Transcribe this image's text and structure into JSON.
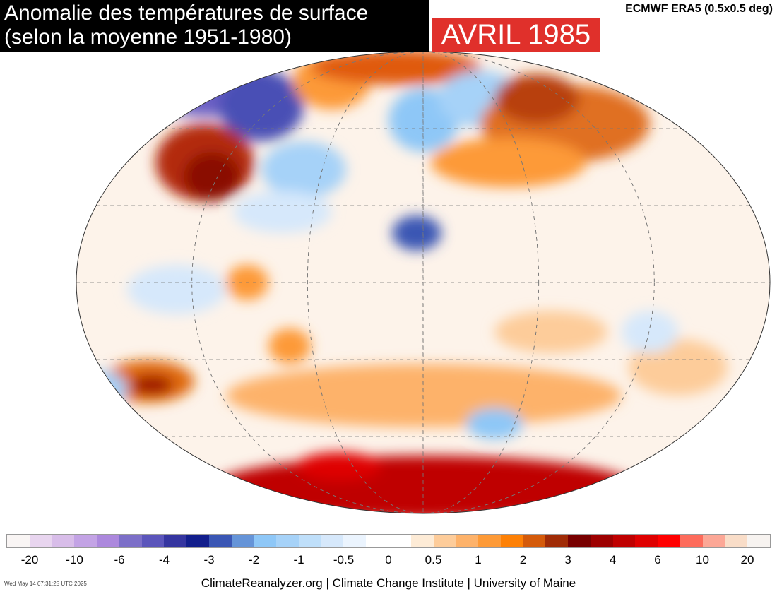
{
  "title": {
    "line1": "Anomalie des températures de surface",
    "line2": "(selon la moyenne 1951-1980)"
  },
  "month_label": "AVRIL 1985",
  "source": "ECMWF ERA5 (0.5x0.5 deg)",
  "colorbar": {
    "colors": [
      "#f9f5f4",
      "#e8d5ef",
      "#d8bde9",
      "#c3a3e5",
      "#ac88dd",
      "#7c6fc8",
      "#5b55bb",
      "#3535a0",
      "#121e8c",
      "#3a56b4",
      "#6594d8",
      "#8ec7f7",
      "#a6d2f8",
      "#bfdffa",
      "#d6e8fb",
      "#ebf4fe",
      "#ffffff",
      "#ffffff",
      "#fdebd6",
      "#fdcc9a",
      "#fdb26a",
      "#fd9a37",
      "#fd8005",
      "#d45a0a",
      "#a02b06",
      "#780000",
      "#9d0000",
      "#bf0000",
      "#df0000",
      "#ff0000",
      "#fd6b5b",
      "#fca796",
      "#f9ddc8",
      "#f7f3f0"
    ],
    "ticks": [
      "-20",
      "-10",
      "-6",
      "-4",
      "-3",
      "-2",
      "-1",
      "-0.5",
      "0",
      "0.5",
      "1",
      "2",
      "3",
      "4",
      "6",
      "10",
      "20"
    ]
  },
  "timestamp": "Wed May 14 07:31:25 UTC 2025",
  "credit": "ClimateReanalyzer.org | Climate Change Institute | University of Maine"
}
